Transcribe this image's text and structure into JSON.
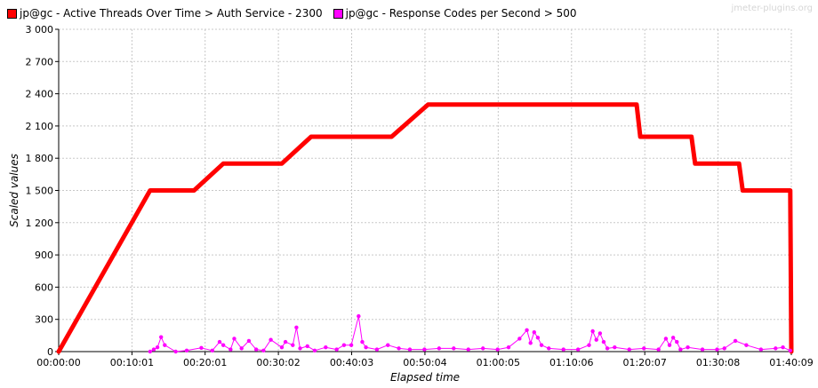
{
  "watermark": "jmeter-plugins.org",
  "legend": [
    {
      "label": "jp@gc - Active Threads Over Time > Auth Service - 2300",
      "color": "#ff0000"
    },
    {
      "label": "jp@gc - Response Codes per Second > 500",
      "color": "#ff00ff"
    }
  ],
  "chart_data": {
    "type": "line",
    "xlabel": "Elapsed time",
    "ylabel": "Scaled values",
    "ylim": [
      0,
      3000
    ],
    "yticks": [
      "0",
      "300",
      "600",
      "900",
      "1 200",
      "1 500",
      "1 800",
      "2 100",
      "2 400",
      "2 700",
      "3 000"
    ],
    "xlim": [
      "00:00:00",
      "01:40:09"
    ],
    "xticks": [
      "00:00:00",
      "00:10:01",
      "00:20:01",
      "00:30:02",
      "00:40:03",
      "00:50:04",
      "01:00:05",
      "01:10:06",
      "01:20:07",
      "01:30:08",
      "01:40:09"
    ],
    "grid": true,
    "legend_position": "top",
    "series": [
      {
        "name": "jp@gc - Active Threads Over Time > Auth Service - 2300",
        "color": "#ff0000",
        "x": [
          "00:00:00",
          "00:12:30",
          "00:18:30",
          "00:22:30",
          "00:30:30",
          "00:34:30",
          "00:45:30",
          "00:50:30",
          "01:19:00",
          "01:19:30",
          "01:26:30",
          "01:27:00",
          "01:33:00",
          "01:33:30",
          "01:40:00",
          "01:40:09"
        ],
        "values": [
          0,
          1500,
          1500,
          1750,
          1750,
          2000,
          2000,
          2300,
          2300,
          2000,
          2000,
          1750,
          1750,
          1500,
          1500,
          0
        ]
      },
      {
        "name": "jp@gc - Response Codes per Second > 500",
        "color": "#ff00ff",
        "x": [
          "00:12:30",
          "00:13:00",
          "00:13:30",
          "00:14:00",
          "00:14:30",
          "00:16:00",
          "00:17:30",
          "00:19:30",
          "00:21:00",
          "00:22:00",
          "00:22:30",
          "00:23:30",
          "00:24:00",
          "00:25:00",
          "00:26:00",
          "00:27:00",
          "00:28:00",
          "00:29:00",
          "00:30:30",
          "00:31:00",
          "00:32:00",
          "00:32:30",
          "00:33:00",
          "00:34:00",
          "00:35:00",
          "00:36:30",
          "00:38:00",
          "00:39:00",
          "00:40:00",
          "00:41:00",
          "00:41:30",
          "00:42:00",
          "00:43:30",
          "00:45:00",
          "00:46:30",
          "00:48:00",
          "00:50:00",
          "00:52:00",
          "00:54:00",
          "00:56:00",
          "00:58:00",
          "01:00:00",
          "01:01:30",
          "01:03:00",
          "01:04:00",
          "01:04:30",
          "01:05:00",
          "01:05:30",
          "01:06:00",
          "01:07:00",
          "01:09:00",
          "01:11:00",
          "01:12:30",
          "01:13:00",
          "01:13:30",
          "01:14:00",
          "01:14:30",
          "01:15:00",
          "01:16:00",
          "01:18:00",
          "01:20:00",
          "01:22:00",
          "01:23:00",
          "01:23:30",
          "01:24:00",
          "01:24:30",
          "01:25:00",
          "01:26:00",
          "01:28:00",
          "01:30:00",
          "01:31:00",
          "01:32:30",
          "01:34:00",
          "01:36:00",
          "01:38:00",
          "01:39:00",
          "01:40:00"
        ],
        "values": [
          0,
          20,
          40,
          135,
          60,
          0,
          10,
          35,
          10,
          90,
          60,
          20,
          120,
          30,
          100,
          20,
          10,
          110,
          40,
          90,
          60,
          225,
          30,
          50,
          10,
          40,
          20,
          60,
          60,
          330,
          90,
          40,
          20,
          60,
          30,
          20,
          20,
          30,
          30,
          20,
          30,
          20,
          40,
          120,
          200,
          80,
          180,
          130,
          60,
          30,
          20,
          20,
          60,
          190,
          110,
          170,
          90,
          30,
          40,
          20,
          30,
          20,
          120,
          60,
          130,
          90,
          20,
          40,
          20,
          20,
          30,
          100,
          60,
          20,
          30,
          40,
          10
        ]
      }
    ]
  }
}
